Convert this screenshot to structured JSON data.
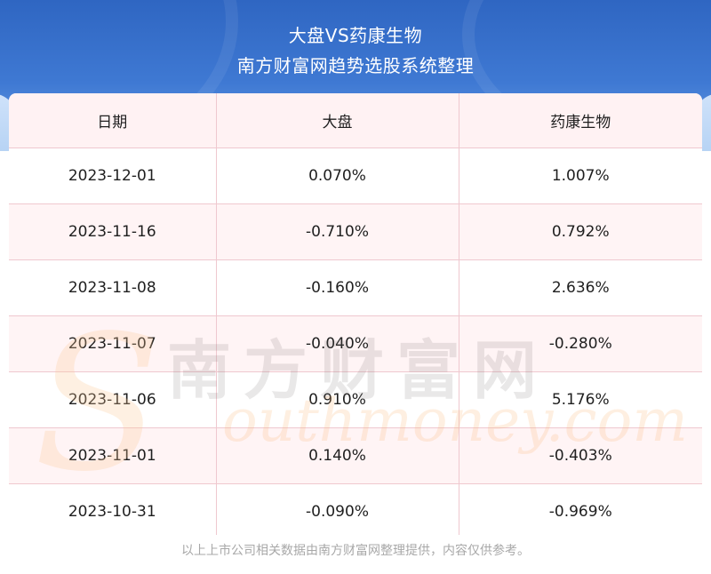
{
  "header": {
    "title": "大盘VS药康生物",
    "subtitle": "南方财富网趋势选股系统整理"
  },
  "table": {
    "columns": [
      "日期",
      "大盘",
      "药康生物"
    ],
    "rows": [
      [
        "2023-12-01",
        "0.070%",
        "1.007%"
      ],
      [
        "2023-11-16",
        "-0.710%",
        "0.792%"
      ],
      [
        "2023-11-08",
        "-0.160%",
        "2.636%"
      ],
      [
        "2023-11-07",
        "-0.040%",
        "-0.280%"
      ],
      [
        "2023-11-06",
        "0.910%",
        "5.176%"
      ],
      [
        "2023-11-01",
        "0.140%",
        "-0.403%"
      ],
      [
        "2023-10-31",
        "-0.090%",
        "-0.969%"
      ]
    ]
  },
  "watermark": {
    "letter": "S",
    "cn": "南方财富网",
    "en": "outhmoney.com"
  },
  "footer": {
    "note": "以上上市公司相关数据由南方财富网整理提供，内容仅供参考。"
  }
}
